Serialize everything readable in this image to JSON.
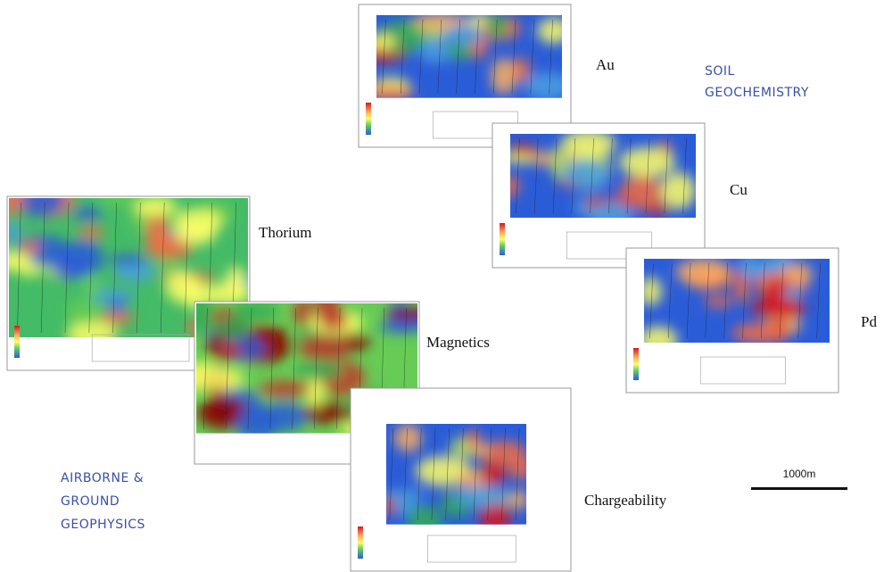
{
  "soil_section": {
    "heading_lines": [
      "SOIL",
      "GEOCHEMISTRY"
    ],
    "maps": [
      "Au",
      "Cu",
      "Pd"
    ]
  },
  "geophysics_section": {
    "heading_lines": [
      "AIRBORNE &",
      "GROUND",
      "GEOPHYSICS"
    ],
    "maps": [
      "Thorium",
      "Magnetics",
      "Chargeability"
    ]
  },
  "scale_bar": {
    "label": "1000m"
  }
}
